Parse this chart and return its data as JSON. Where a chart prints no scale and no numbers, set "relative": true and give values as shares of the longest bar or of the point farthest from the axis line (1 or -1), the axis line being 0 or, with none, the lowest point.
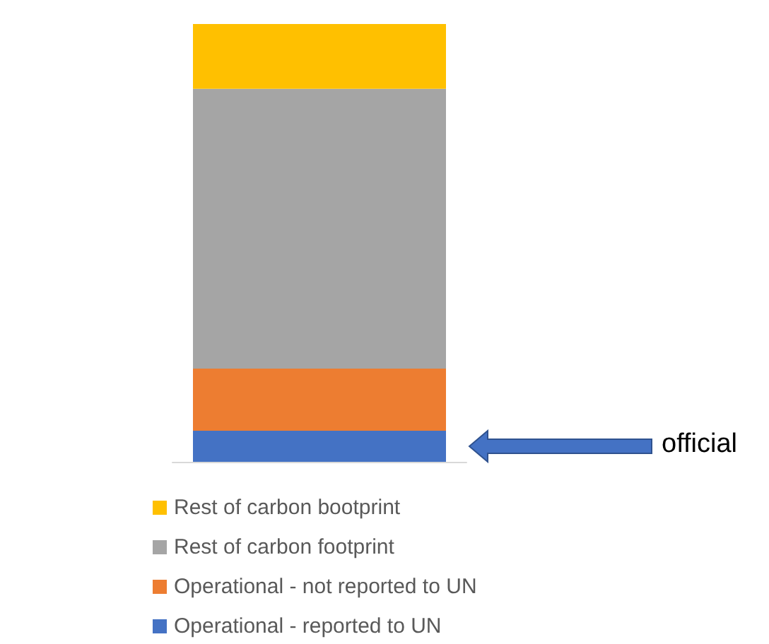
{
  "chart_data": {
    "type": "bar",
    "relative": true,
    "stacked": true,
    "categories": [
      null
    ],
    "series": [
      {
        "name": "Operational - reported to UN",
        "color": "#4472c4",
        "values": [
          0.071
        ]
      },
      {
        "name": "Operational - not reported to UN",
        "color": "#ed7d31",
        "values": [
          0.142
        ]
      },
      {
        "name": "Rest of carbon footprint",
        "color": "#a5a5a5",
        "values": [
          0.639
        ]
      },
      {
        "name": "Rest of carbon bootprint",
        "color": "#ffc000",
        "values": [
          0.148
        ]
      }
    ],
    "legend": "bottom",
    "annotations": [
      "official"
    ]
  }
}
